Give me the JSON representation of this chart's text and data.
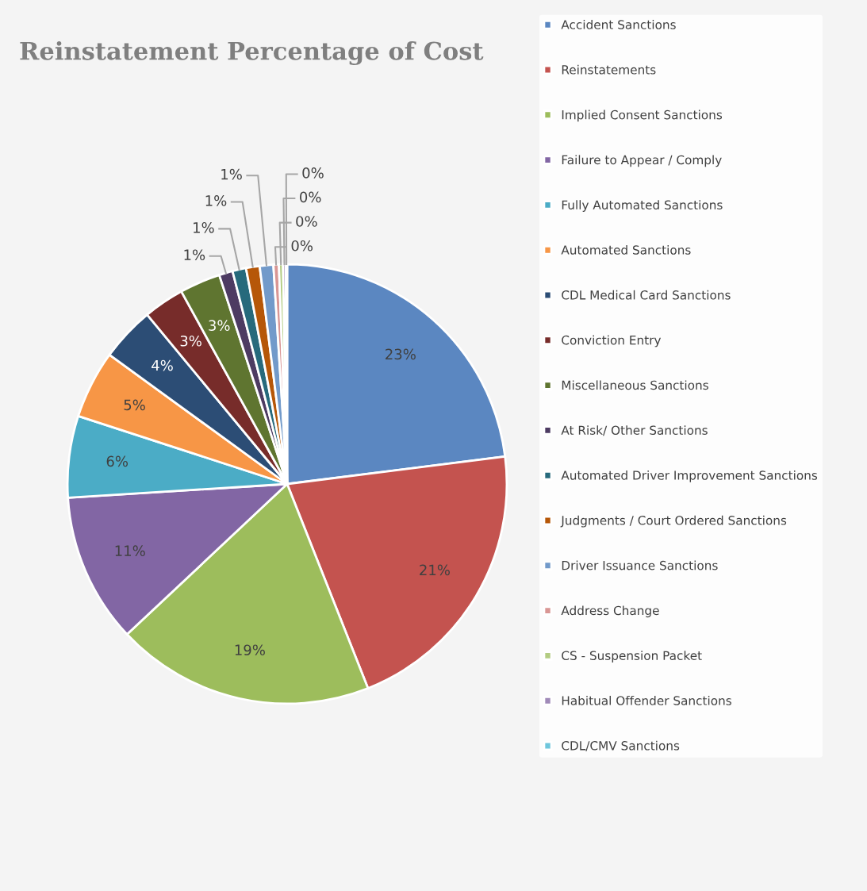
{
  "chart_data": {
    "type": "pie",
    "title": "Reinstatement Percentage of Cost",
    "categories": [
      "Accident Sanctions",
      "Reinstatements",
      "Implied Consent Sanctions",
      "Failure to Appear / Comply",
      "Fully Automated Sanctions",
      "Automated Sanctions",
      "CDL Medical Card Sanctions",
      "Conviction Entry",
      "Miscellaneous Sanctions",
      "At Risk/ Other Sanctions",
      "Automated Driver Improvement Sanctions",
      "Judgments / Court Ordered Sanctions",
      "Driver Issuance Sanctions",
      "Address Change",
      "CS - Suspension Packet",
      "Habitual Offender Sanctions",
      "CDL/CMV Sanctions"
    ],
    "values": [
      23,
      21,
      19,
      11,
      6,
      5,
      4,
      3,
      3,
      1,
      1,
      1,
      1,
      0.4,
      0.3,
      0.2,
      0.1
    ],
    "value_labels": [
      "23%",
      "21%",
      "19%",
      "11%",
      "6%",
      "5%",
      "4%",
      "3%",
      "3%",
      "1%",
      "1%",
      "1%",
      "1%",
      "0%",
      "0%",
      "0%",
      "0%"
    ],
    "colors": [
      "#5b87c1",
      "#c4534f",
      "#9dbd5c",
      "#8266a4",
      "#4bacc6",
      "#f79646",
      "#2c4d75",
      "#772c2a",
      "#5f7530",
      "#4d3b62",
      "#276a7c",
      "#b65708",
      "#729aca",
      "#d99694",
      "#b3cc82",
      "#a08ab8",
      "#6ec6dc"
    ],
    "legend": "right"
  }
}
